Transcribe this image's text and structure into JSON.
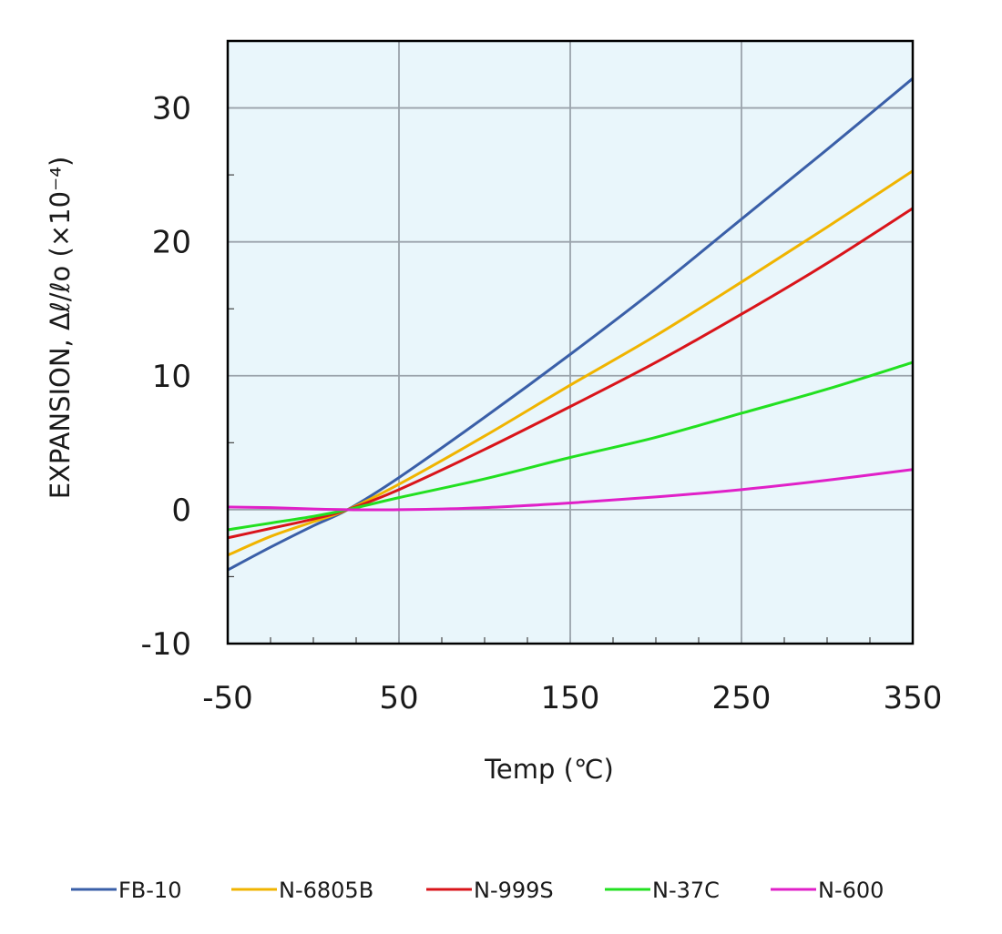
{
  "chart_data": {
    "type": "line",
    "xlabel": "Temp (℃)",
    "ylabel": "EXPANSION, Δℓ/ℓo (×10⁻⁴)",
    "xlim": [
      -50,
      350
    ],
    "ylim": [
      -10,
      35
    ],
    "x_ticks": [
      -50,
      50,
      150,
      250,
      350
    ],
    "y_ticks": [
      -10,
      0,
      10,
      20,
      30
    ],
    "grid": true,
    "plot_background": "#e9f6fb",
    "legend_position": "bottom",
    "x": [
      -50,
      -25,
      0,
      20,
      50,
      100,
      150,
      200,
      250,
      300,
      350
    ],
    "series": [
      {
        "name": "FB-10",
        "color": "#3a5fa8",
        "values": [
          -4.5,
          -2.8,
          -1.2,
          0,
          2.4,
          6.9,
          11.6,
          16.5,
          21.7,
          26.9,
          32.2
        ]
      },
      {
        "name": "N-6805B",
        "color": "#f0b400",
        "values": [
          -3.4,
          -2.0,
          -0.9,
          0,
          1.9,
          5.5,
          9.3,
          13.0,
          17.0,
          21.1,
          25.3
        ]
      },
      {
        "name": "N-999S",
        "color": "#d9141a",
        "values": [
          -2.1,
          -1.4,
          -0.7,
          0,
          1.5,
          4.5,
          7.7,
          11.0,
          14.6,
          18.4,
          22.5
        ]
      },
      {
        "name": "N-37C",
        "color": "#22e020",
        "values": [
          -1.5,
          -1.0,
          -0.5,
          0,
          0.9,
          2.3,
          3.9,
          5.4,
          7.2,
          9.0,
          11.0
        ]
      },
      {
        "name": "N-600",
        "color": "#e020c8",
        "values": [
          0.2,
          0.15,
          0.05,
          0,
          0.0,
          0.15,
          0.5,
          0.95,
          1.5,
          2.2,
          3.0
        ]
      }
    ]
  }
}
